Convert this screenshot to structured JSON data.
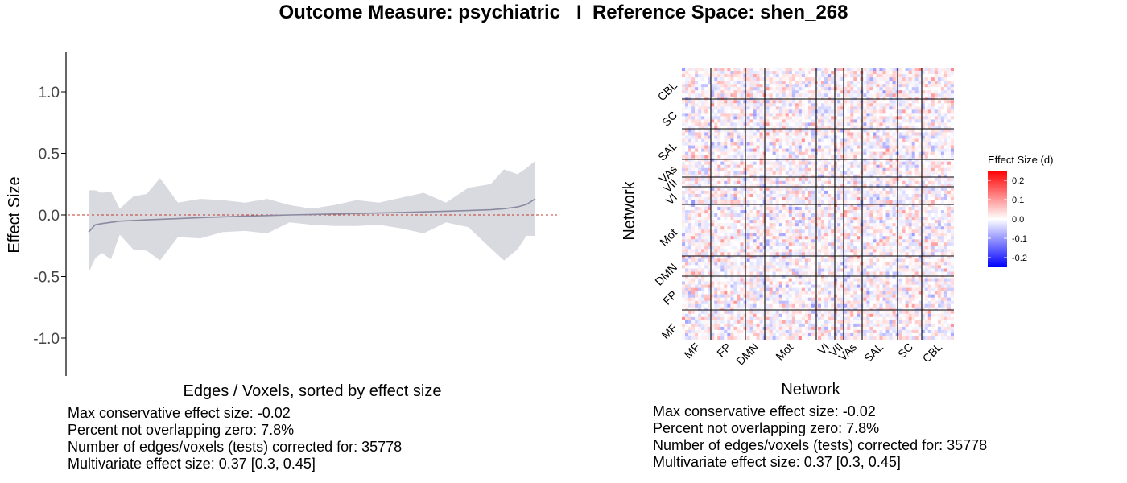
{
  "title": "Outcome Measure: psychiatric   I  Reference Space: shen_268",
  "colors": {
    "ribbon": "#d9d9e0",
    "line": "#8a8aa0",
    "zero_line": "#c0392b",
    "heat_pos": "#ff0000",
    "heat_neg": "#0000ff",
    "heat_mid": "#ffffff",
    "grid_lines": "#000000"
  },
  "chart_data": [
    {
      "type": "area",
      "xlabel": "Edges / Voxels, sorted by effect size",
      "ylabel": "Effect Size",
      "ylim": [
        -1.3,
        1.3
      ],
      "yticks": [
        "1.0",
        "0.5",
        "0.0",
        "-0.5",
        "-1.0"
      ],
      "ytick_values": [
        1.0,
        0.5,
        0.0,
        -0.5,
        -1.0
      ],
      "xlim": [
        0,
        100
      ],
      "zero_reference_line": 0.0,
      "series": [
        {
          "x": [
            0,
            1.5,
            3,
            5,
            7,
            10,
            13,
            16,
            20,
            25,
            30,
            35,
            40,
            45,
            50,
            55,
            60,
            65,
            70,
            75,
            80,
            85,
            90,
            93,
            96,
            98,
            100
          ],
          "values": [
            -0.14,
            -0.08,
            -0.07,
            -0.06,
            -0.05,
            -0.045,
            -0.04,
            -0.035,
            -0.03,
            -0.022,
            -0.016,
            -0.01,
            -0.005,
            0.0,
            0.004,
            0.008,
            0.012,
            0.016,
            0.02,
            0.025,
            0.03,
            0.035,
            0.042,
            0.05,
            0.065,
            0.085,
            0.13
          ],
          "upper": [
            0.2,
            0.2,
            0.18,
            0.19,
            0.05,
            0.15,
            0.17,
            0.3,
            0.1,
            0.13,
            0.12,
            0.1,
            0.13,
            0.08,
            0.05,
            0.08,
            0.12,
            0.1,
            0.14,
            0.18,
            0.1,
            0.22,
            0.25,
            0.37,
            0.33,
            0.38,
            0.44
          ],
          "lower": [
            -0.47,
            -0.35,
            -0.31,
            -0.36,
            -0.16,
            -0.28,
            -0.29,
            -0.37,
            -0.18,
            -0.19,
            -0.14,
            -0.13,
            -0.15,
            -0.06,
            -0.08,
            -0.09,
            -0.09,
            -0.08,
            -0.11,
            -0.15,
            -0.06,
            -0.1,
            -0.27,
            -0.37,
            -0.28,
            -0.17,
            -0.17
          ]
        }
      ]
    },
    {
      "type": "heatmap",
      "xlabel": "Network",
      "ylabel": "Network",
      "x_categories": [
        "MF",
        "FP",
        "DMN",
        "Mot",
        "VI",
        "VII",
        "VAs",
        "SAL",
        "SC",
        "CBL"
      ],
      "y_categories": [
        "CBL",
        "SC",
        "SAL",
        "VAs",
        "VII",
        "VI",
        "Mot",
        "DMN",
        "FP",
        "MF"
      ],
      "legend_title": "Effect Size (d)",
      "legend_ticks": [
        "0.2",
        "0.1",
        "0.0",
        "-0.1",
        "-0.2"
      ],
      "legend_tick_values": [
        0.2,
        0.1,
        0.0,
        -0.1,
        -0.2
      ],
      "value_range": [
        -0.25,
        0.25
      ]
    }
  ],
  "stats_left": [
    "Max conservative effect size: -0.02",
    "Percent not overlapping zero: 7.8%",
    "Number of edges/voxels (tests) corrected for: 35778",
    "Multivariate effect size: 0.37 [0.3, 0.45]"
  ],
  "stats_right": [
    "Max conservative effect size: -0.02",
    "Percent not overlapping zero: 7.8%",
    "Number of edges/voxels (tests) corrected for: 35778",
    "Multivariate effect size: 0.37 [0.3, 0.45]"
  ]
}
